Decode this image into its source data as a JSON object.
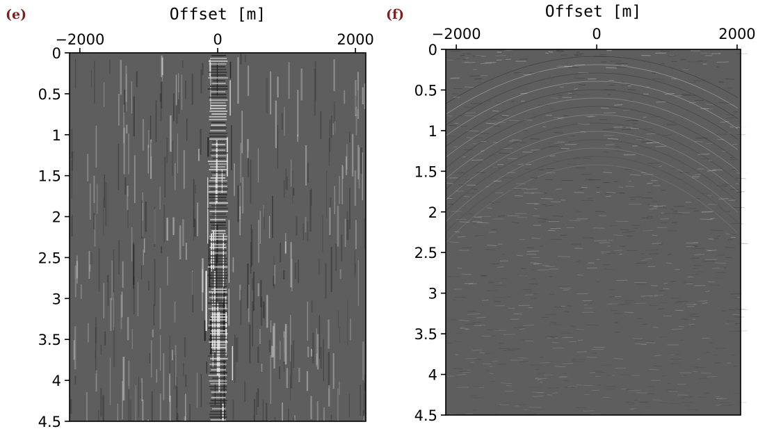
{
  "chart_data": [
    {
      "type": "heatmap",
      "panel_label": "(e)",
      "title": "",
      "xlabel": "Offset [m]",
      "ylabel": "",
      "x_axis_position": "top",
      "xlim": [
        -2150,
        2150
      ],
      "ylim": [
        0,
        4.5
      ],
      "y_inverted": true,
      "x_ticks": [
        -2000,
        0,
        2000
      ],
      "x_tick_labels": [
        "−2000",
        "0",
        "2000"
      ],
      "y_ticks": [
        0,
        0.5,
        1,
        1.5,
        2,
        2.5,
        3,
        3.5,
        4,
        4.5
      ],
      "y_tick_labels": [
        "0",
        "0.5",
        "1",
        "1.5",
        "2",
        "2.5",
        "3",
        "3.5",
        "4",
        "4.5"
      ],
      "colormap": "grayscale seismic wiggle (gray background ~#5e5e5e)",
      "description_of_content": "Strong vertically striped noise concentrated near zero offset, with bright events down to 4.5"
    },
    {
      "type": "heatmap",
      "panel_label": "(f)",
      "title": "",
      "xlabel": "Offset [m]",
      "ylabel": "",
      "x_axis_position": "top",
      "xlim": [
        -2150,
        2050
      ],
      "ylim": [
        0,
        4.5
      ],
      "y_inverted": true,
      "x_ticks": [
        -2000,
        0,
        2000
      ],
      "x_tick_labels": [
        "−2000",
        "0",
        "2000"
      ],
      "y_ticks": [
        0,
        0.5,
        1,
        1.5,
        2,
        2.5,
        3,
        3.5,
        4,
        4.5
      ],
      "y_tick_labels": [
        "0",
        "0.5",
        "1",
        "1.5",
        "2",
        "2.5",
        "3",
        "3.5",
        "4",
        "4.5"
      ],
      "colormap": "grayscale seismic (gray background ~#5e5e5e)",
      "description_of_content": "Fine textured seismic section with hyperbolic events near zero offset at early times, fading below 2"
    }
  ],
  "colors": {
    "background_gray": "#5e5e5e",
    "panel_label_color": "#7a1f1f"
  }
}
